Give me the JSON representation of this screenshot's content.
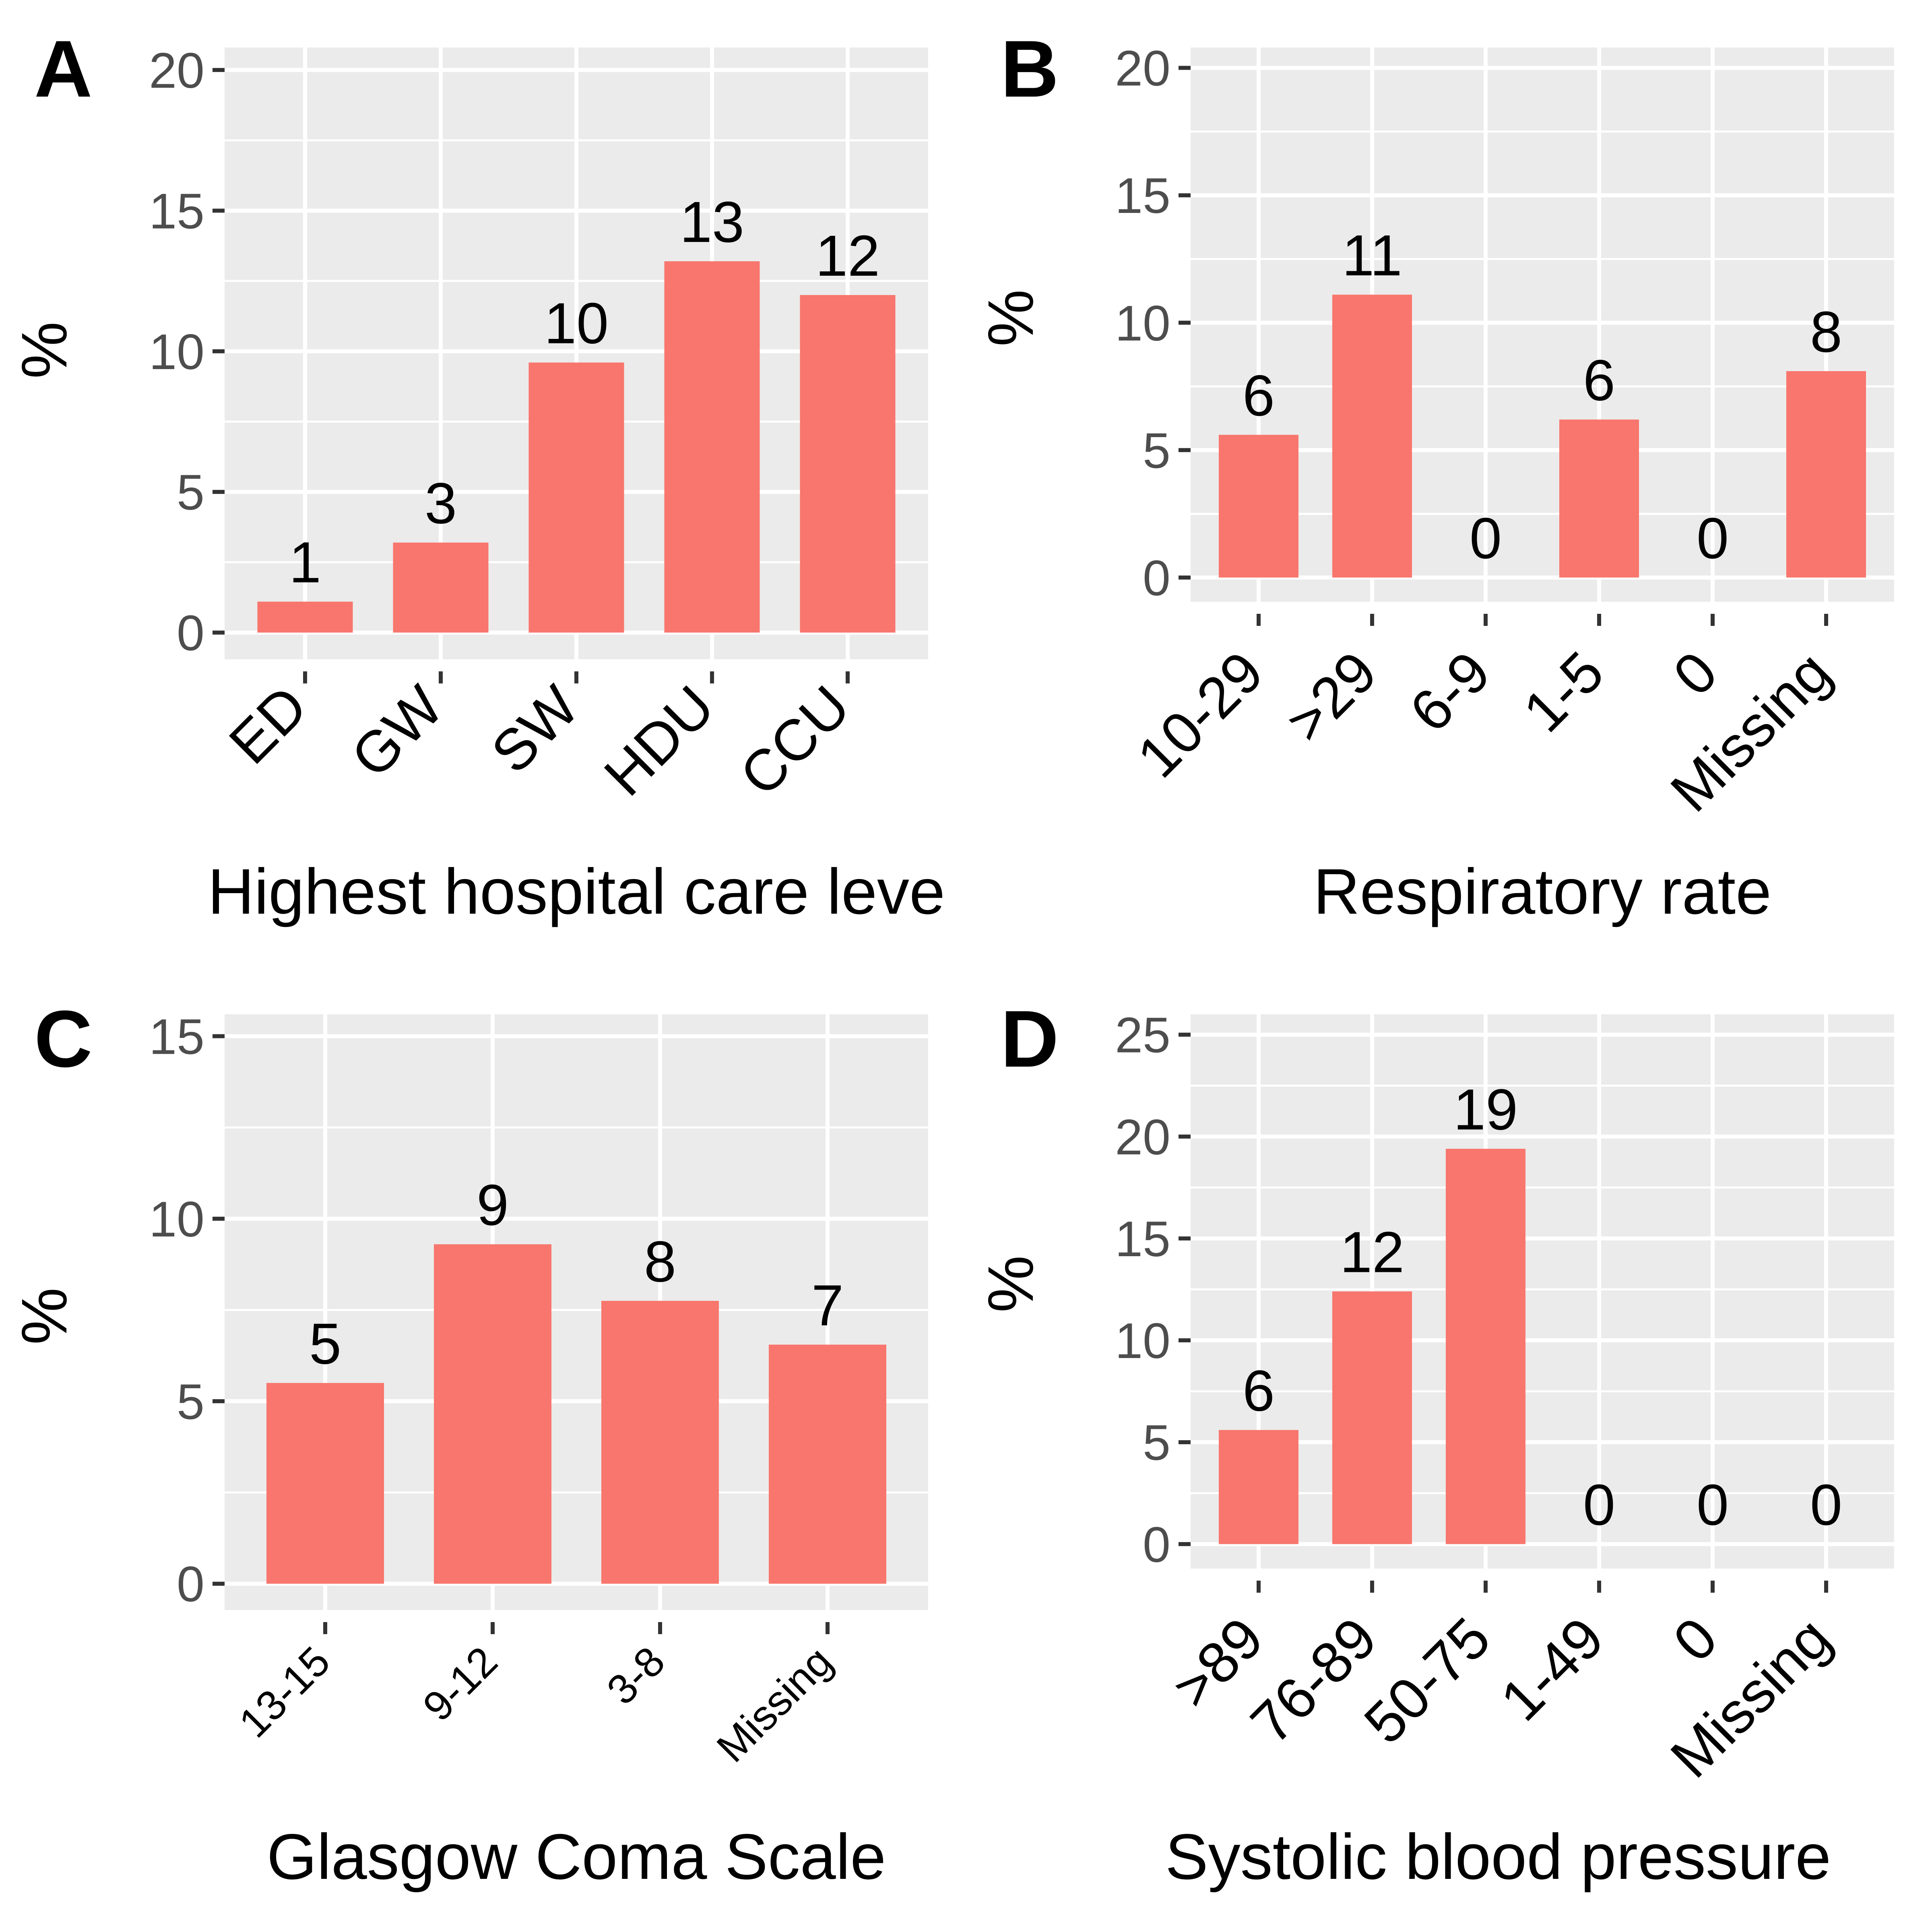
{
  "chart_data": [
    {
      "panel_label": "A",
      "type": "bar",
      "xlabel": "Highest hospital care leve",
      "ylabel": "%",
      "ylim": [
        0,
        20
      ],
      "yticks": [
        0,
        5,
        10,
        15,
        20
      ],
      "grid": true,
      "categories": [
        "ED",
        "GW",
        "SW",
        "HDU",
        "CCU"
      ],
      "values": [
        1.1,
        3.2,
        9.6,
        13.2,
        12.0
      ],
      "data_labels": [
        "1",
        "3",
        "10",
        "13",
        "12"
      ]
    },
    {
      "panel_label": "B",
      "type": "bar",
      "xlabel": "Respiratory rate",
      "ylabel": "%",
      "ylim": [
        0,
        20
      ],
      "yticks": [
        0,
        5,
        10,
        15,
        20
      ],
      "grid": true,
      "categories": [
        "10-29",
        ">29",
        "6-9",
        "1-5",
        "0",
        "Missing"
      ],
      "values": [
        5.6,
        11.1,
        0,
        6.2,
        0,
        8.1
      ],
      "data_labels": [
        "6",
        "11",
        "0",
        "6",
        "0",
        "8"
      ]
    },
    {
      "panel_label": "C",
      "type": "bar",
      "xlabel": "Glasgow Coma Scale",
      "ylabel": "%",
      "ylim": [
        0,
        15
      ],
      "yticks": [
        0,
        5,
        10,
        15
      ],
      "grid": true,
      "categories": [
        "13-15",
        "9-12",
        "3-8",
        "Missing"
      ],
      "values": [
        5.5,
        9.3,
        7.75,
        6.55
      ],
      "data_labels": [
        "5",
        "9",
        "8",
        "7"
      ]
    },
    {
      "panel_label": "D",
      "type": "bar",
      "xlabel": "Systolic blood pressure",
      "ylabel": "%",
      "ylim": [
        0,
        25
      ],
      "yticks": [
        0,
        5,
        10,
        15,
        20,
        25
      ],
      "grid": true,
      "categories": [
        ">89",
        "76-89",
        "50-75",
        "1-49",
        "0",
        "Missing"
      ],
      "values": [
        5.6,
        12.4,
        19.4,
        0,
        0,
        0
      ],
      "data_labels": [
        "6",
        "12",
        "19",
        "0",
        "0",
        "0"
      ]
    }
  ],
  "colors": {
    "bar": "#F8766D",
    "panel_background": "#EBEBEB",
    "grid": "#FFFFFF",
    "tick": "#333333",
    "tick_label": "#4D4D4D",
    "text": "#000000"
  }
}
